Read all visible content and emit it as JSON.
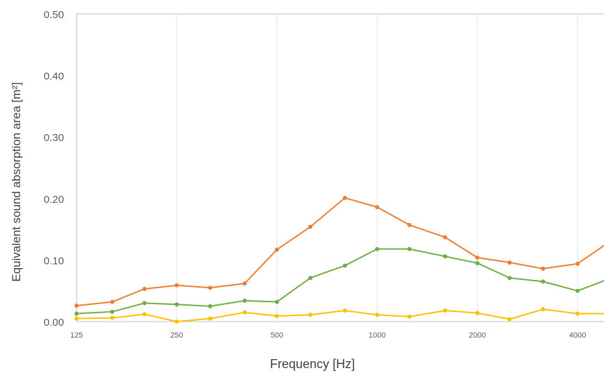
{
  "chart_data": {
    "type": "line",
    "title": "",
    "xlabel": "Frequency [Hz]",
    "ylabel": "Equivalent sound absorption area [m²]",
    "x_scale": "log",
    "x": [
      125,
      160,
      200,
      250,
      315,
      400,
      500,
      630,
      800,
      1000,
      1250,
      1600,
      2000,
      2500,
      3150,
      4000,
      5000
    ],
    "x_tick_values": [
      125,
      250,
      500,
      1000,
      2000,
      4000
    ],
    "x_tick_labels": [
      "125",
      "250",
      "500",
      "1000",
      "2000",
      "4000"
    ],
    "ylim": [
      0,
      0.5
    ],
    "y_tick_values": [
      0,
      0.1,
      0.2,
      0.3,
      0.4,
      0.5
    ],
    "y_tick_labels": [
      "0.00",
      "0.10",
      "0.20",
      "0.30",
      "0.40",
      "0.50"
    ],
    "grid": "vertical",
    "series": [
      {
        "color": "#ED7D31",
        "values": [
          0.026,
          0.032,
          0.053,
          0.059,
          0.055,
          0.062,
          0.117,
          0.154,
          0.201,
          0.186,
          0.157,
          0.137,
          0.104,
          0.096,
          0.086,
          0.094,
          0.13
        ]
      },
      {
        "color": "#70AD47",
        "values": [
          0.013,
          0.016,
          0.03,
          0.028,
          0.025,
          0.034,
          0.032,
          0.071,
          0.091,
          0.118,
          0.118,
          0.106,
          0.095,
          0.071,
          0.065,
          0.05,
          0.07
        ]
      },
      {
        "color": "#FFC000",
        "values": [
          0.005,
          0.006,
          0.012,
          0.0,
          0.005,
          0.015,
          0.009,
          0.011,
          0.018,
          0.011,
          0.008,
          0.018,
          0.014,
          0.004,
          0.02,
          0.013,
          0.013
        ]
      }
    ]
  }
}
